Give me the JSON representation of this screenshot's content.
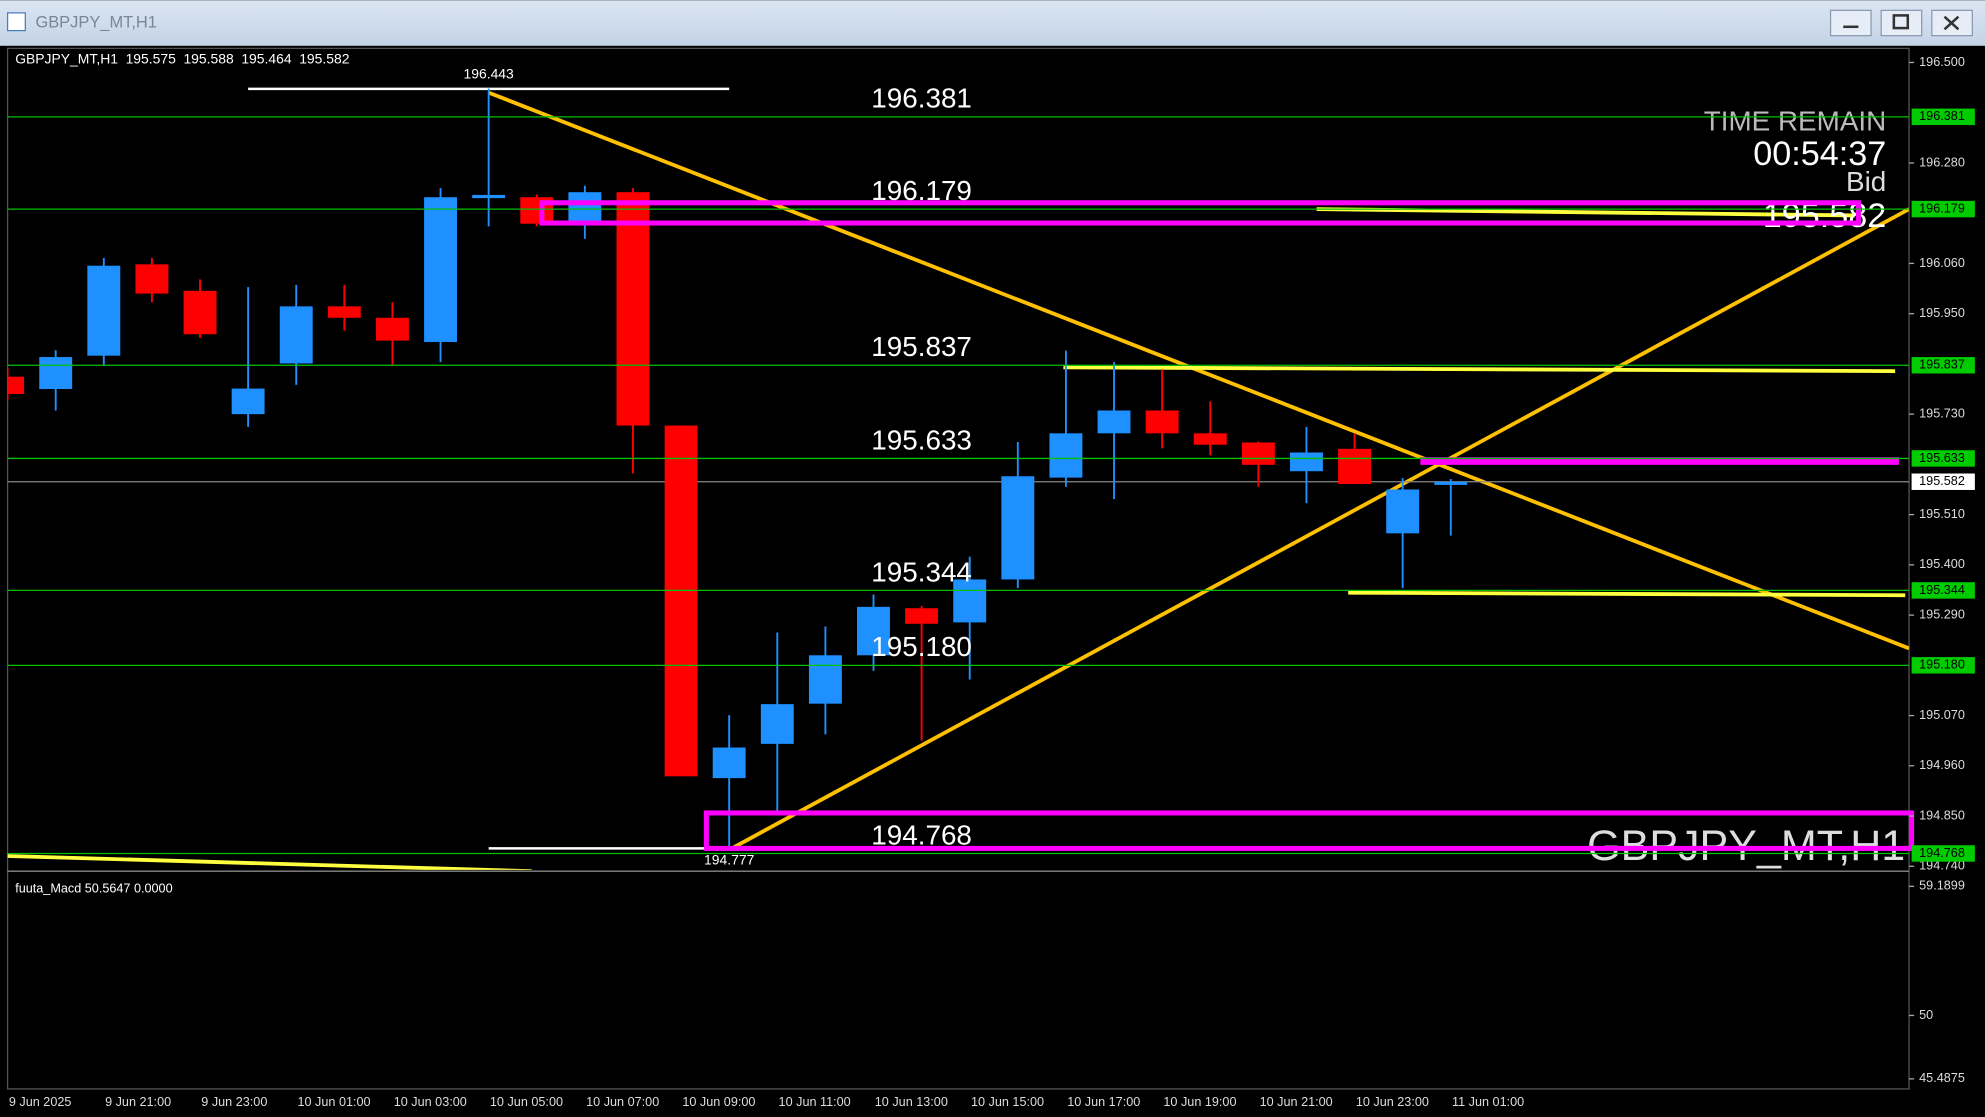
{
  "chart_data": {
    "type": "candlestick",
    "title": "GBPJPY_MT,H1",
    "categories": [
      "9 Jun 2025",
      null,
      "9 Jun 21:00",
      null,
      "9 Jun 23:00",
      null,
      "10 Jun 01:00",
      null,
      "10 Jun 03:00",
      null,
      "10 Jun 05:00",
      null,
      "10 Jun 07:00",
      null,
      "10 Jun 09:00",
      null,
      "10 Jun 11:00",
      null,
      "10 Jun 13:00",
      null,
      "10 Jun 15:00",
      null,
      "10 Jun 17:00",
      null,
      "10 Jun 19:00",
      null,
      "10 Jun 21:00",
      null,
      "10 Jun 23:00",
      null,
      "11 Jun 01:00"
    ],
    "open": [
      195.812,
      195.785,
      195.858,
      196.058,
      196.0,
      195.73,
      195.841,
      195.966,
      195.941,
      195.888,
      196.203,
      196.205,
      196.147,
      196.216,
      195.705,
      194.933,
      195.008,
      195.096,
      195.202,
      195.305,
      195.274,
      195.368,
      195.591,
      195.688,
      195.738,
      195.688,
      195.668,
      195.605,
      195.654,
      195.469,
      195.575
    ],
    "high": [
      195.83,
      195.87,
      196.072,
      196.072,
      196.025,
      196.008,
      196.013,
      196.013,
      195.975,
      196.225,
      196.443,
      196.211,
      196.23,
      196.225,
      195.705,
      195.071,
      195.252,
      195.265,
      195.335,
      195.31,
      195.418,
      195.669,
      195.869,
      195.844,
      195.828,
      195.758,
      195.67,
      195.702,
      195.688,
      195.59,
      195.588
    ],
    "low": [
      195.76,
      195.738,
      195.835,
      195.975,
      195.897,
      195.702,
      195.794,
      195.913,
      195.835,
      195.844,
      196.141,
      196.141,
      196.114,
      195.6,
      194.937,
      194.777,
      194.862,
      195.029,
      195.168,
      195.015,
      195.149,
      195.349,
      195.571,
      195.544,
      195.655,
      195.64,
      195.571,
      195.535,
      195.58,
      195.349,
      195.464
    ],
    "close": [
      195.774,
      195.855,
      196.055,
      195.994,
      195.905,
      195.786,
      195.966,
      195.941,
      195.891,
      196.205,
      196.21,
      196.147,
      196.216,
      195.705,
      194.937,
      195.0,
      195.095,
      195.202,
      195.308,
      195.271,
      195.368,
      195.594,
      195.688,
      195.738,
      195.688,
      195.663,
      195.619,
      195.646,
      195.577,
      195.565,
      195.582
    ],
    "up_color": "#1e90ff",
    "down_color": "#ff0000",
    "ylim": [
      194.732,
      196.531
    ],
    "yticks": [
      {
        "value": 196.5,
        "label": "196.500"
      },
      {
        "value": 196.28,
        "label": "196.280"
      },
      {
        "value": 196.06,
        "label": "196.060"
      },
      {
        "value": 195.95,
        "label": "195.950"
      },
      {
        "value": 195.73,
        "label": "195.730"
      },
      {
        "value": 195.51,
        "label": "195.510"
      },
      {
        "value": 195.4,
        "label": "195.400"
      },
      {
        "value": 195.29,
        "label": "195.290"
      },
      {
        "value": 195.07,
        "label": "195.070"
      },
      {
        "value": 194.96,
        "label": "194.960"
      },
      {
        "value": 194.85,
        "label": "194.850"
      },
      {
        "value": 194.74,
        "label": "194.740"
      }
    ],
    "levels": [
      {
        "value": 196.381,
        "label": "196.381"
      },
      {
        "value": 196.179,
        "label": "196.179"
      },
      {
        "value": 195.837,
        "label": "195.837"
      },
      {
        "value": 195.633,
        "label": "195.633"
      },
      {
        "value": 195.344,
        "label": "195.344"
      },
      {
        "value": 195.18,
        "label": "195.180"
      },
      {
        "value": 194.768,
        "label": "194.768"
      }
    ],
    "level_color": "#00c000",
    "bid": 195.582,
    "timer": {
      "title": "TIME REMAIN",
      "remaining": "00:54:37",
      "price_label": "Bid"
    },
    "indicator": {
      "title": "fuuta_Macd 50.5647 0.0000",
      "ylim": [
        44.77,
        60.09
      ],
      "yticks": [
        59.1899,
        50,
        45.4875
      ]
    }
  }
}
